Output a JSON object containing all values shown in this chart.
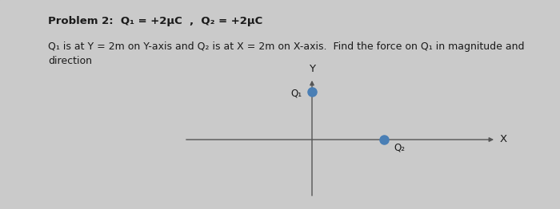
{
  "bg_color": "#c8c8c8",
  "plot_bg_color": "#e8e8e8",
  "text_color": "#1a1a1a",
  "dot_color": "#4a7fb5",
  "axis_color": "#555555",
  "axis_linewidth": 1.0,
  "dot_size": 8,
  "title_line1": "Problem 2:  Q₁ = +2μC  ,  Q₂ = +2μC",
  "body_text": "Q₁ is at Y = 2m on Y-axis and Q₂ is at X = 2m on X-axis.  Find the force on Q₁ in magnitude and\ndirection",
  "title_fontsize": 9.5,
  "body_fontsize": 9.0,
  "label_fontsize": 8.5,
  "axis_label_fontsize": 9.5,
  "Q1_label": "Q₁",
  "Q2_label": "Q₂",
  "X_label": "X",
  "Y_label": "Y"
}
